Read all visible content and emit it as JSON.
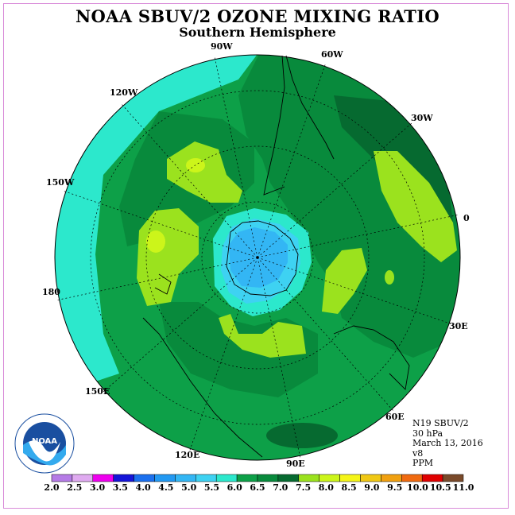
{
  "title": "NOAA SBUV/2 OZONE MIXING RATIO",
  "subtitle": "Southern Hemisphere",
  "longitude_labels": [
    "90W",
    "60W",
    "30W",
    "0",
    "30E",
    "60E",
    "90E",
    "120E",
    "150E",
    "180",
    "150W",
    "120W"
  ],
  "info": {
    "satellite": "N19 SBUV/2",
    "pressure": "30 hPa",
    "date": "March 13, 2016",
    "version": "v8",
    "units": "PPM"
  },
  "logo_text": "NOAA",
  "colorbar": {
    "ticks": [
      "2.0",
      "2.5",
      "3.0",
      "3.5",
      "4.0",
      "4.5",
      "5.0",
      "5.5",
      "6.0",
      "6.5",
      "7.0",
      "7.5",
      "8.0",
      "8.5",
      "9.0",
      "9.5",
      "10.0",
      "10.5",
      "11.0"
    ],
    "colors": [
      "#b57be6",
      "#dfaaf0",
      "#ee00ee",
      "#1515d8",
      "#1b70ee",
      "#2299f2",
      "#33b6f4",
      "#3ed2f2",
      "#2ce8cc",
      "#0da048",
      "#088a3c",
      "#066a30",
      "#9be21e",
      "#ccf51a",
      "#f5f518",
      "#f0c814",
      "#f0a010",
      "#f06a10",
      "#e00000",
      "#7a4a2a"
    ]
  },
  "map_colors": {
    "c5_0": "#33b6f4",
    "c5_5": "#3ed2f2",
    "c6_0": "#2ce8cc",
    "c6_5": "#0da048",
    "c7_0": "#088a3c",
    "c7_5": "#066a30",
    "c8_0": "#9be21e",
    "c8_5": "#ccf51a"
  }
}
